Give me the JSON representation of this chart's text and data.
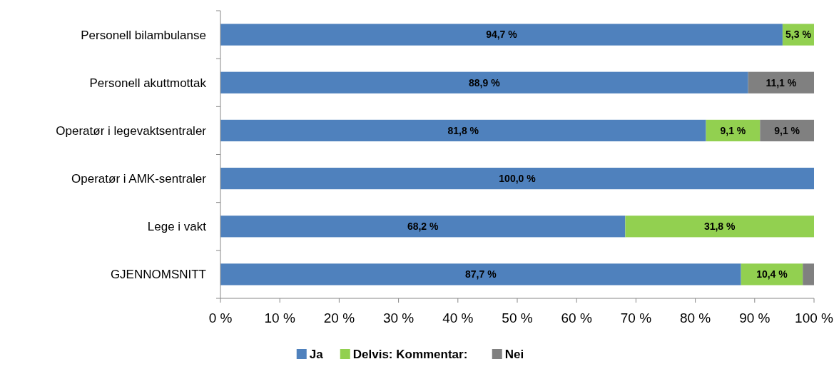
{
  "chart_data": {
    "type": "bar",
    "orientation": "horizontal",
    "stacked": true,
    "categories": [
      "Personell bilambulanse",
      "Personell akuttmottak",
      "Operatør i legevaktsentraler",
      "Operatør i AMK-sentraler",
      "Lege i vakt",
      "GJENNOMSNITT"
    ],
    "series": [
      {
        "name": "Ja",
        "color": "#4f81bd",
        "values": [
          94.7,
          88.9,
          81.8,
          100.0,
          68.2,
          87.7
        ],
        "value_labels": [
          "94,7 %",
          "88,9 %",
          "81,8 %",
          "100,0 %",
          "68,2 %",
          "87,7 %"
        ]
      },
      {
        "name": "Delvis: Kommentar:",
        "color": "#92d050",
        "values": [
          5.3,
          0,
          9.1,
          0,
          31.8,
          10.4
        ],
        "value_labels": [
          "5,3 %",
          null,
          "9,1 %",
          null,
          "31,8 %",
          "10,4 %"
        ]
      },
      {
        "name": "Nei",
        "color": "#808080",
        "values": [
          0,
          11.1,
          9.1,
          0,
          0,
          1.9
        ],
        "value_labels": [
          null,
          "11,1 %",
          "9,1 %",
          null,
          null,
          null
        ]
      }
    ],
    "xlim": [
      0,
      100
    ],
    "xticks": [
      {
        "value": 0,
        "label": "0 %"
      },
      {
        "value": 10,
        "label": "10 %"
      },
      {
        "value": 20,
        "label": "20 %"
      },
      {
        "value": 30,
        "label": "30 %"
      },
      {
        "value": 40,
        "label": "40 %"
      },
      {
        "value": 50,
        "label": "50 %"
      },
      {
        "value": 60,
        "label": "60 %"
      },
      {
        "value": 70,
        "label": "70 %"
      },
      {
        "value": 80,
        "label": "80 %"
      },
      {
        "value": 90,
        "label": "90 %"
      },
      {
        "value": 100,
        "label": "100 %"
      }
    ],
    "grid": false,
    "legend": "bottom"
  }
}
